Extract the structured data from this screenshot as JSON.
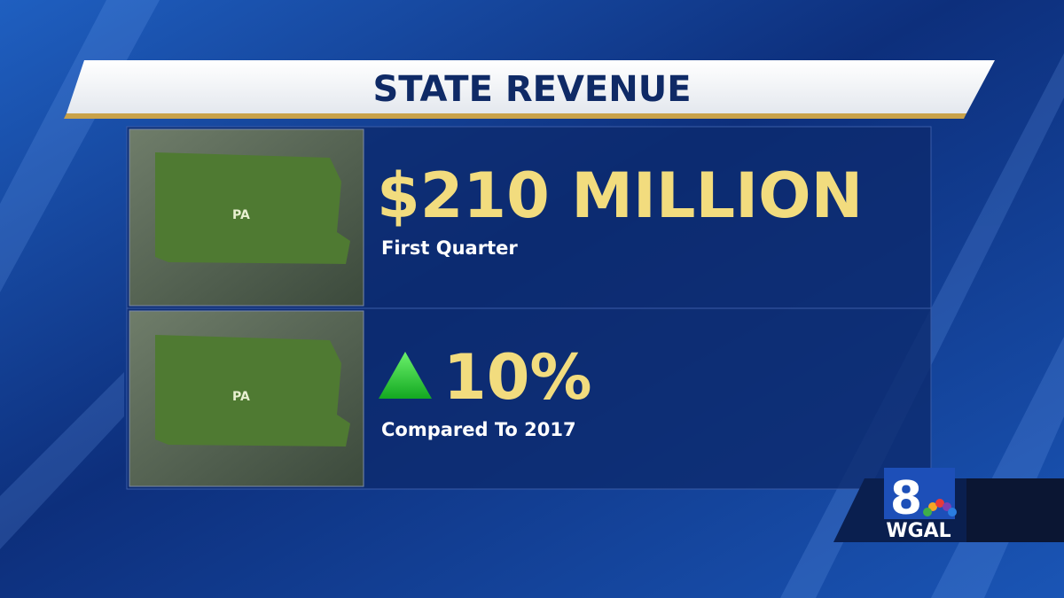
{
  "header": {
    "title": "STATE REVENUE"
  },
  "panels": [
    {
      "image_label": "PA",
      "headline": "$210 MILLION",
      "subtitle": "First Quarter"
    },
    {
      "image_label": "PA",
      "headline": "10%",
      "subtitle": "Compared To 2017"
    }
  ],
  "logo": {
    "channel": "8",
    "call_sign": "WGAL"
  }
}
